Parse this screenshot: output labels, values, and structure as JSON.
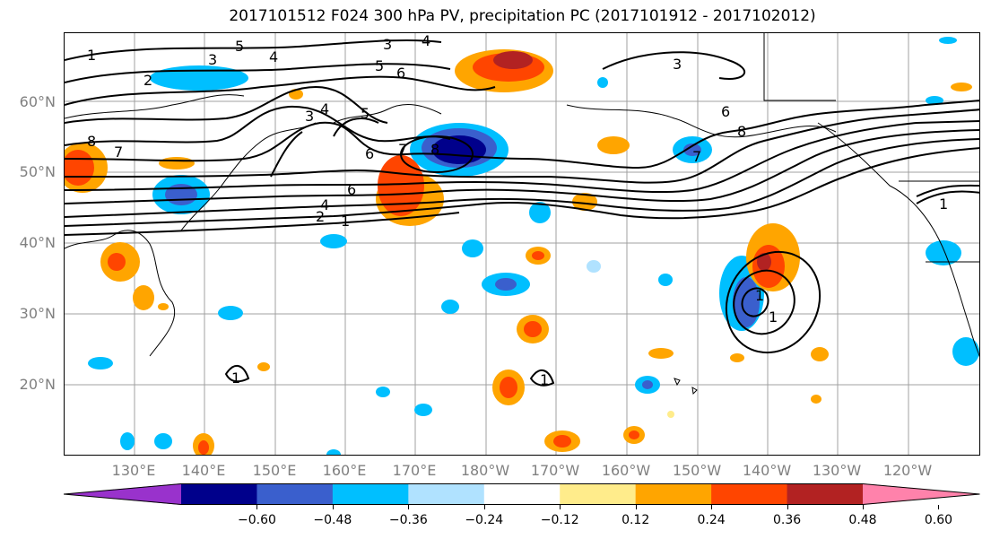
{
  "title": "2017101512 F024 300 hPa PV, precipitation PC (2017101912 - 2017102012)",
  "lat_labels": [
    "60°N",
    "50°N",
    "40°N",
    "30°N",
    "20°N"
  ],
  "lon_labels": [
    "130°E",
    "140°E",
    "150°E",
    "160°E",
    "170°E",
    "180°W",
    "170°W",
    "160°W",
    "150°W",
    "140°W",
    "130°W",
    "120°W"
  ],
  "colorbar": {
    "ticks": [
      "−0.60",
      "−0.48",
      "−0.36",
      "−0.24",
      "−0.12",
      "0.12",
      "0.24",
      "0.36",
      "0.48",
      "0.60"
    ],
    "colors": [
      "#9932cc",
      "#00008b",
      "#3a5fcd",
      "#00bfff",
      "#b0e2ff",
      "#ffffff",
      "#ffec8b",
      "#ffa500",
      "#ff4500",
      "#b22222",
      "#ff82ab"
    ]
  },
  "contour_labels": [
    "1",
    "5",
    "3",
    "4",
    "5",
    "6",
    "2",
    "3",
    "4",
    "5",
    "6",
    "3",
    "4",
    "8",
    "7",
    "6",
    "4",
    "2",
    "1",
    "7",
    "8",
    "6",
    "7",
    "8",
    "1",
    "1",
    "1",
    "3",
    "1",
    "1"
  ],
  "colors": {
    "neg_light": "#b0e2ff",
    "neg_mid": "#00bfff",
    "neg_strong": "#3a5fcd",
    "neg_max": "#00008b",
    "pos_light": "#ffec8b",
    "pos_mid": "#ffa500",
    "pos_strong": "#ff4500",
    "pos_max": "#b22222"
  }
}
